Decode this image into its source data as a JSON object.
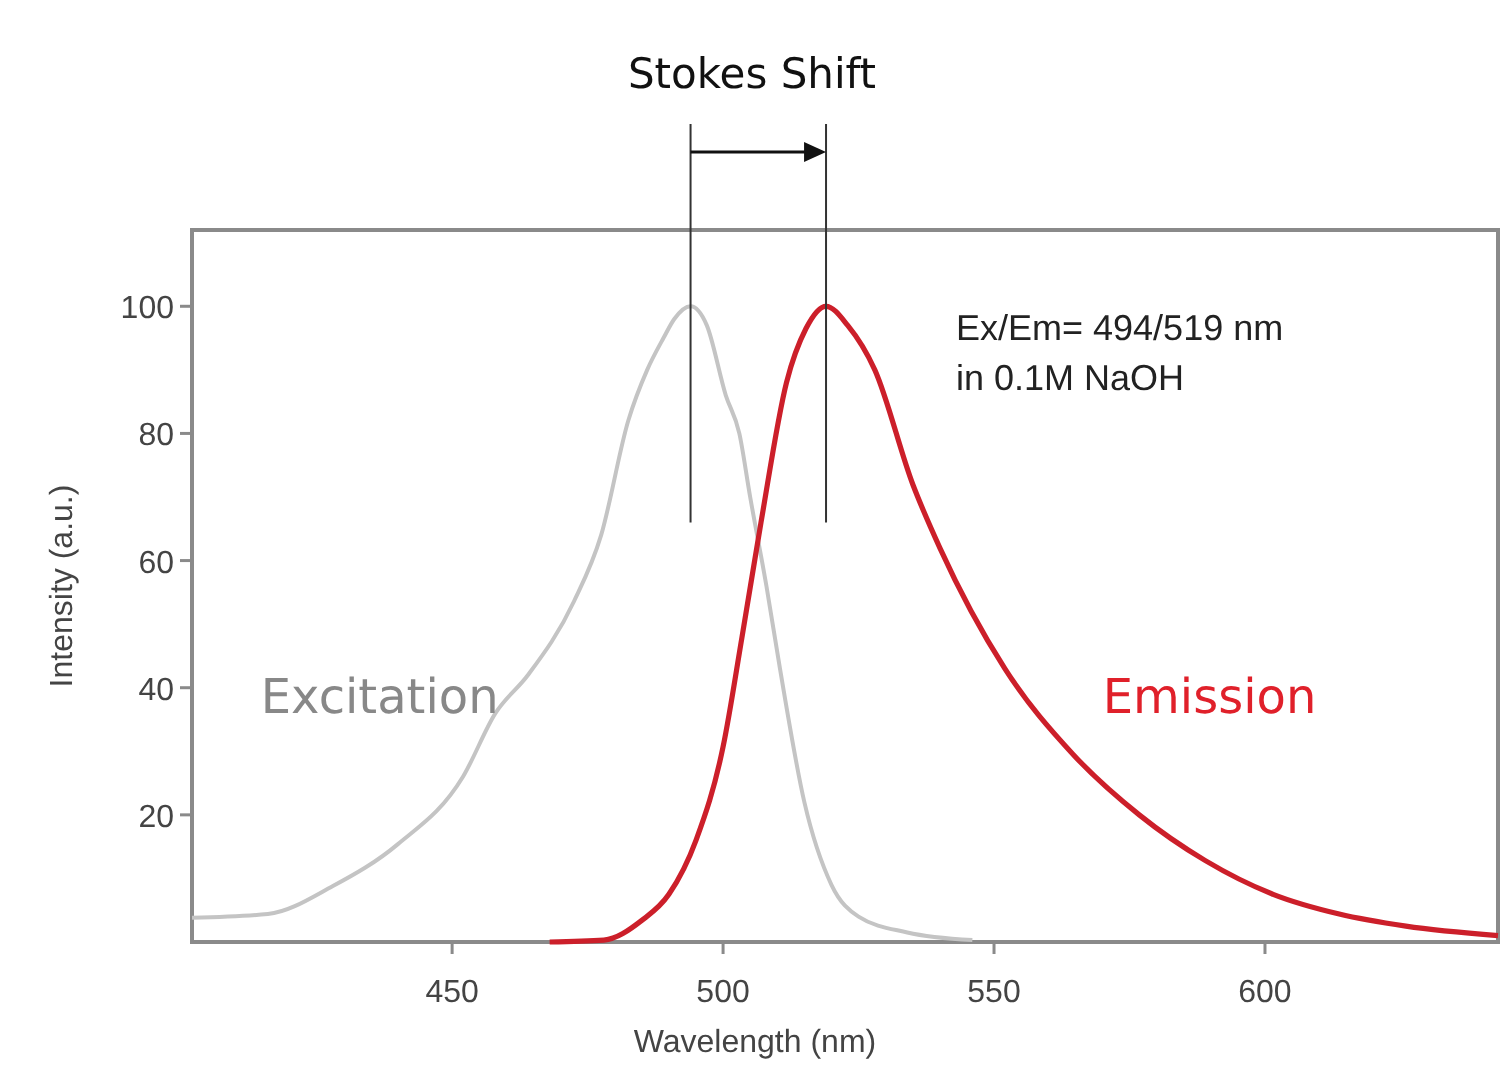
{
  "chart_data": {
    "type": "line",
    "title": "Stokes Shift",
    "xlabel": "Wavelength (nm)",
    "ylabel": "Intensity (a.u.)",
    "xlim": [
      402,
      643
    ],
    "ylim": [
      0,
      112
    ],
    "xticks": [
      450,
      500,
      550,
      600
    ],
    "yticks": [
      20,
      40,
      60,
      80,
      100
    ],
    "grid": false,
    "legend": false,
    "marker": "none",
    "line_style": "solid",
    "series": [
      {
        "name": "Excitation",
        "color": "#c4c4c4",
        "x": [
          402,
          416,
          428,
          440,
          452,
          458,
          464,
          472.5,
          477.5,
          482.5,
          486,
          489,
          491,
          494,
          497,
          500.5,
          503,
          505,
          508,
          510.5,
          515,
          520,
          525,
          534,
          546
        ],
        "values": [
          3.8,
          4.4,
          8.8,
          15.4,
          26,
          36,
          42,
          53.6,
          64,
          82,
          90,
          95,
          98,
          100,
          97,
          86,
          80,
          70,
          56,
          43,
          22,
          9,
          4,
          1.5,
          0.3
        ]
      },
      {
        "name": "Emission",
        "color": "#cc1f2a",
        "x": [
          468,
          478,
          485,
          490,
          495,
          500,
          503.5,
          507,
          511.7,
          515.3,
          519,
          523,
          528,
          535,
          540,
          552,
          564.6,
          576.8,
          589,
          601.5,
          613.7,
          626,
          643
        ],
        "values": [
          0,
          0.3,
          3.4,
          7.5,
          16,
          30.7,
          48,
          66,
          88,
          96.5,
          100,
          97,
          90,
          72,
          62,
          43,
          29.5,
          20,
          12.8,
          7.5,
          4.4,
          2.5,
          1
        ]
      }
    ],
    "ref_lines": [
      {
        "axis": "x",
        "value": 494
      },
      {
        "axis": "x",
        "value": 519
      }
    ],
    "annotations": [
      "Ex/Em= 494/519 nm\nin 0.1M NaOH"
    ]
  }
}
